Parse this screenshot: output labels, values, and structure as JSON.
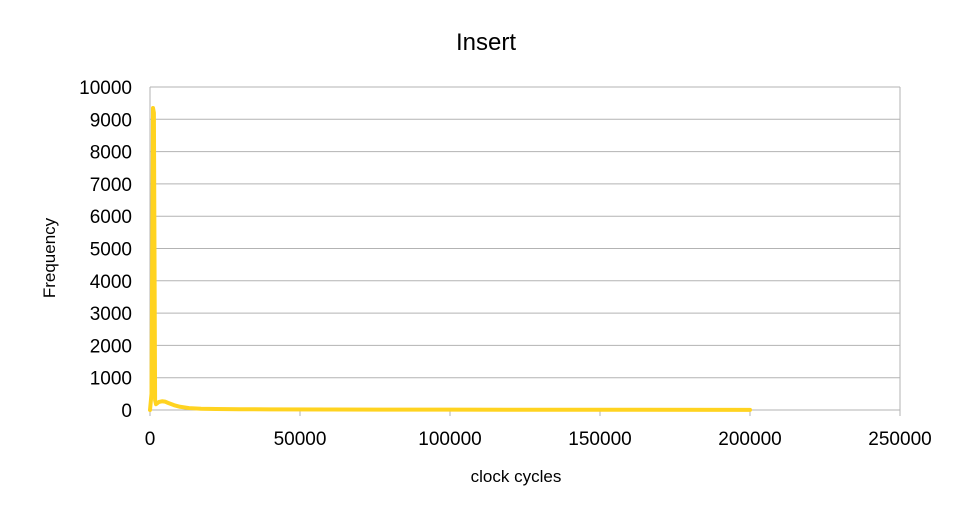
{
  "chart_data": {
    "type": "line",
    "title": "Insert",
    "xlabel": "clock cycles",
    "ylabel": "Frequency",
    "xlim": [
      0,
      250000
    ],
    "ylim": [
      0,
      10000
    ],
    "x_ticks": [
      0,
      50000,
      100000,
      150000,
      200000,
      250000
    ],
    "y_ticks": [
      0,
      1000,
      2000,
      3000,
      4000,
      5000,
      6000,
      7000,
      8000,
      9000,
      10000
    ],
    "grid": true,
    "legend": "none",
    "series": [
      {
        "name": "Insert",
        "color": "#ffd320",
        "x": [
          0,
          500,
          1000,
          1300,
          1700,
          2000,
          3000,
          4000,
          5000,
          6000,
          8000,
          10000,
          13000,
          17000,
          22000,
          30000,
          40000,
          60000,
          100000,
          150000,
          200000
        ],
        "y": [
          0,
          500,
          9350,
          9200,
          300,
          180,
          250,
          270,
          260,
          220,
          150,
          100,
          60,
          40,
          30,
          25,
          20,
          15,
          10,
          8,
          5
        ]
      }
    ]
  }
}
